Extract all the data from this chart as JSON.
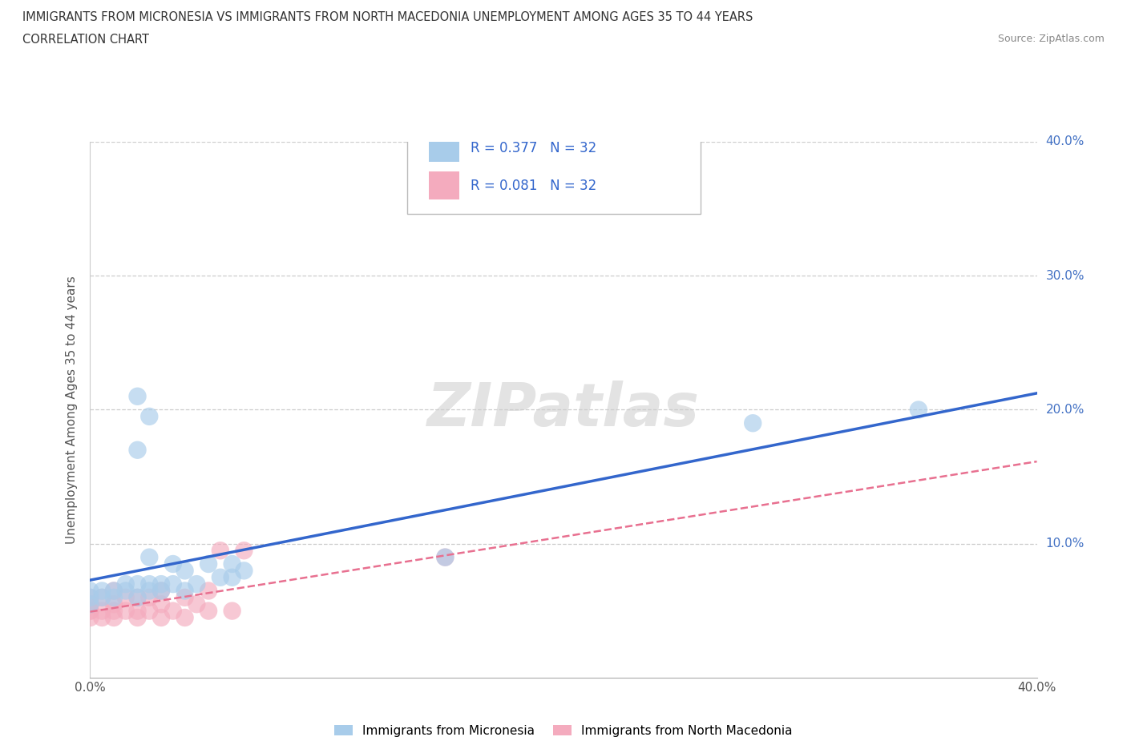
{
  "title_line1": "IMMIGRANTS FROM MICRONESIA VS IMMIGRANTS FROM NORTH MACEDONIA UNEMPLOYMENT AMONG AGES 35 TO 44 YEARS",
  "title_line2": "CORRELATION CHART",
  "source": "Source: ZipAtlas.com",
  "ylabel": "Unemployment Among Ages 35 to 44 years",
  "xlim": [
    0.0,
    0.4
  ],
  "ylim": [
    0.0,
    0.4
  ],
  "xticks": [
    0.0,
    0.1,
    0.2,
    0.3,
    0.4
  ],
  "yticks": [
    0.1,
    0.2,
    0.3,
    0.4
  ],
  "r_micronesia": 0.377,
  "n_micronesia": 32,
  "r_north_macedonia": 0.081,
  "n_north_macedonia": 32,
  "color_micronesia": "#A8CCEA",
  "color_north_macedonia": "#F4ABBE",
  "line_color_micronesia": "#3366CC",
  "line_color_north_macedonia": "#E87090",
  "micronesia_x": [
    0.0,
    0.0,
    0.0,
    0.005,
    0.005,
    0.01,
    0.01,
    0.015,
    0.015,
    0.02,
    0.02,
    0.025,
    0.025,
    0.03,
    0.03,
    0.035,
    0.04,
    0.04,
    0.045,
    0.05,
    0.055,
    0.06,
    0.06,
    0.065,
    0.02,
    0.025,
    0.15,
    0.02,
    0.025,
    0.035,
    0.28,
    0.35
  ],
  "micronesia_y": [
    0.055,
    0.06,
    0.065,
    0.06,
    0.065,
    0.06,
    0.065,
    0.065,
    0.07,
    0.06,
    0.07,
    0.065,
    0.07,
    0.065,
    0.07,
    0.07,
    0.065,
    0.08,
    0.07,
    0.085,
    0.075,
    0.075,
    0.085,
    0.08,
    0.17,
    0.195,
    0.09,
    0.21,
    0.09,
    0.085,
    0.19,
    0.2
  ],
  "north_macedonia_x": [
    0.0,
    0.0,
    0.0,
    0.0,
    0.0,
    0.005,
    0.005,
    0.005,
    0.01,
    0.01,
    0.01,
    0.01,
    0.015,
    0.015,
    0.02,
    0.02,
    0.02,
    0.025,
    0.025,
    0.03,
    0.03,
    0.03,
    0.035,
    0.04,
    0.04,
    0.045,
    0.05,
    0.05,
    0.055,
    0.06,
    0.065,
    0.15
  ],
  "north_macedonia_y": [
    0.045,
    0.05,
    0.05,
    0.055,
    0.06,
    0.045,
    0.05,
    0.06,
    0.045,
    0.05,
    0.055,
    0.065,
    0.05,
    0.06,
    0.045,
    0.05,
    0.06,
    0.05,
    0.06,
    0.045,
    0.055,
    0.065,
    0.05,
    0.045,
    0.06,
    0.055,
    0.05,
    0.065,
    0.095,
    0.05,
    0.095,
    0.09
  ]
}
